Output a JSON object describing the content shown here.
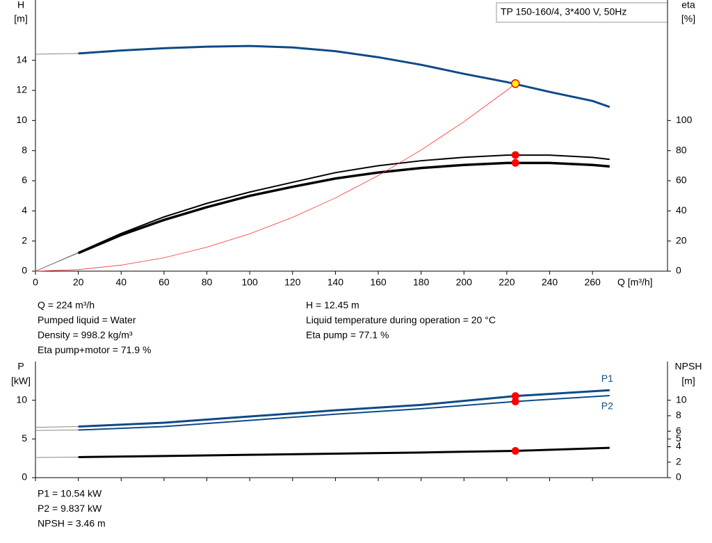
{
  "chart_data": [
    {
      "type": "line",
      "title": "TP 150-160/4, 3*400 V, 50Hz",
      "y_label": "H",
      "y_unit": "[m]",
      "y2_label": "eta",
      "y2_unit": "[%]",
      "x_label": "Q [m³/h]",
      "x": [
        0,
        20,
        40,
        60,
        80,
        100,
        120,
        140,
        160,
        180,
        200,
        220,
        240,
        260,
        268
      ],
      "xlim": [
        0,
        295
      ],
      "xticks": [
        0,
        20,
        40,
        60,
        80,
        100,
        120,
        140,
        160,
        180,
        200,
        220,
        240,
        260
      ],
      "ylim": [
        0,
        18
      ],
      "yticks": [
        0,
        2,
        4,
        6,
        8,
        10,
        12,
        14
      ],
      "y2lim": [
        0,
        180
      ],
      "y2ticks": [
        0,
        20,
        40,
        60,
        80,
        100
      ],
      "series": [
        {
          "color": "#0d4a87",
          "values": [
            14.4,
            14.45,
            14.65,
            14.8,
            14.9,
            14.95,
            14.85,
            14.6,
            14.2,
            13.7,
            13.1,
            12.55,
            11.9,
            11.3,
            10.9
          ]
        },
        {
          "color": "#000000",
          "axis": "y2",
          "values": [
            0,
            12.4,
            25,
            36,
            45,
            52.5,
            59,
            65.4,
            70,
            73.3,
            75.6,
            77,
            77,
            75.5,
            74.2
          ]
        },
        {
          "color": "#000000",
          "axis": "y2",
          "values": [
            0,
            12,
            24,
            34,
            42.5,
            50,
            56,
            61.5,
            65.5,
            68.5,
            70.5,
            71.8,
            71.8,
            70.5,
            69.5
          ]
        },
        {
          "color": "#ff2a2a",
          "x": [
            0,
            20,
            40,
            60,
            80,
            100,
            120,
            140,
            160,
            180,
            200,
            220,
            224
          ],
          "values": [
            0,
            0.1,
            0.4,
            0.89,
            1.59,
            2.48,
            3.57,
            4.86,
            6.35,
            8.04,
            9.92,
            12.0,
            12.45
          ]
        }
      ],
      "points": [
        {
          "x": 224,
          "y": 12.45,
          "color": "#ffff00"
        },
        {
          "x": 224,
          "y": 77.1,
          "axis": "y2",
          "color": "#ff0000"
        },
        {
          "x": 224,
          "y": 71.9,
          "axis": "y2",
          "color": "#ff0000"
        }
      ],
      "info_left": [
        "Q = 224 m³/h",
        "Pumped liquid = Water",
        "Density = 998.2 kg/m³",
        "Eta pump+motor = 71.9 %"
      ],
      "info_right": [
        "H = 12.45 m",
        "Liquid temperature during operation = 20 °C",
        "Eta pump = 77.1 %"
      ]
    },
    {
      "type": "line",
      "y_label": "P",
      "y_unit": "[kW]",
      "y2_label": "NPSH",
      "y2_unit": "[m]",
      "x": [
        0,
        20,
        60,
        100,
        140,
        180,
        224,
        268
      ],
      "xlim": [
        0,
        295
      ],
      "xticks": [
        0,
        20,
        40,
        60,
        80,
        100,
        120,
        140,
        160,
        180,
        200,
        220,
        240,
        260
      ],
      "ylim": [
        0,
        15
      ],
      "yticks": [
        0,
        5,
        10
      ],
      "y2lim": [
        0,
        15
      ],
      "y2ticks": [
        0,
        2,
        4,
        5,
        6,
        8,
        10
      ],
      "series": [
        {
          "name": "P1",
          "color": "#0d4a87",
          "values": [
            6.5,
            6.6,
            7.1,
            7.9,
            8.7,
            9.4,
            10.54,
            11.3
          ]
        },
        {
          "name": "P2",
          "color": "#0d4a87",
          "values": [
            6.1,
            6.15,
            6.6,
            7.4,
            8.2,
            8.9,
            9.837,
            10.6
          ]
        },
        {
          "color": "#000000",
          "axis": "y2",
          "values": [
            2.6,
            2.65,
            2.8,
            2.95,
            3.1,
            3.25,
            3.46,
            3.85
          ]
        }
      ],
      "points": [
        {
          "x": 224,
          "y": 10.54,
          "color": "#ff0000"
        },
        {
          "x": 224,
          "y": 9.837,
          "color": "#ff0000"
        },
        {
          "x": 224,
          "y": 3.46,
          "axis": "y2",
          "color": "#ff0000"
        }
      ],
      "info_left": [
        "P1 = 10.54 kW",
        "P2 = 9.837 kW",
        "NPSH = 3.46 m"
      ]
    }
  ]
}
